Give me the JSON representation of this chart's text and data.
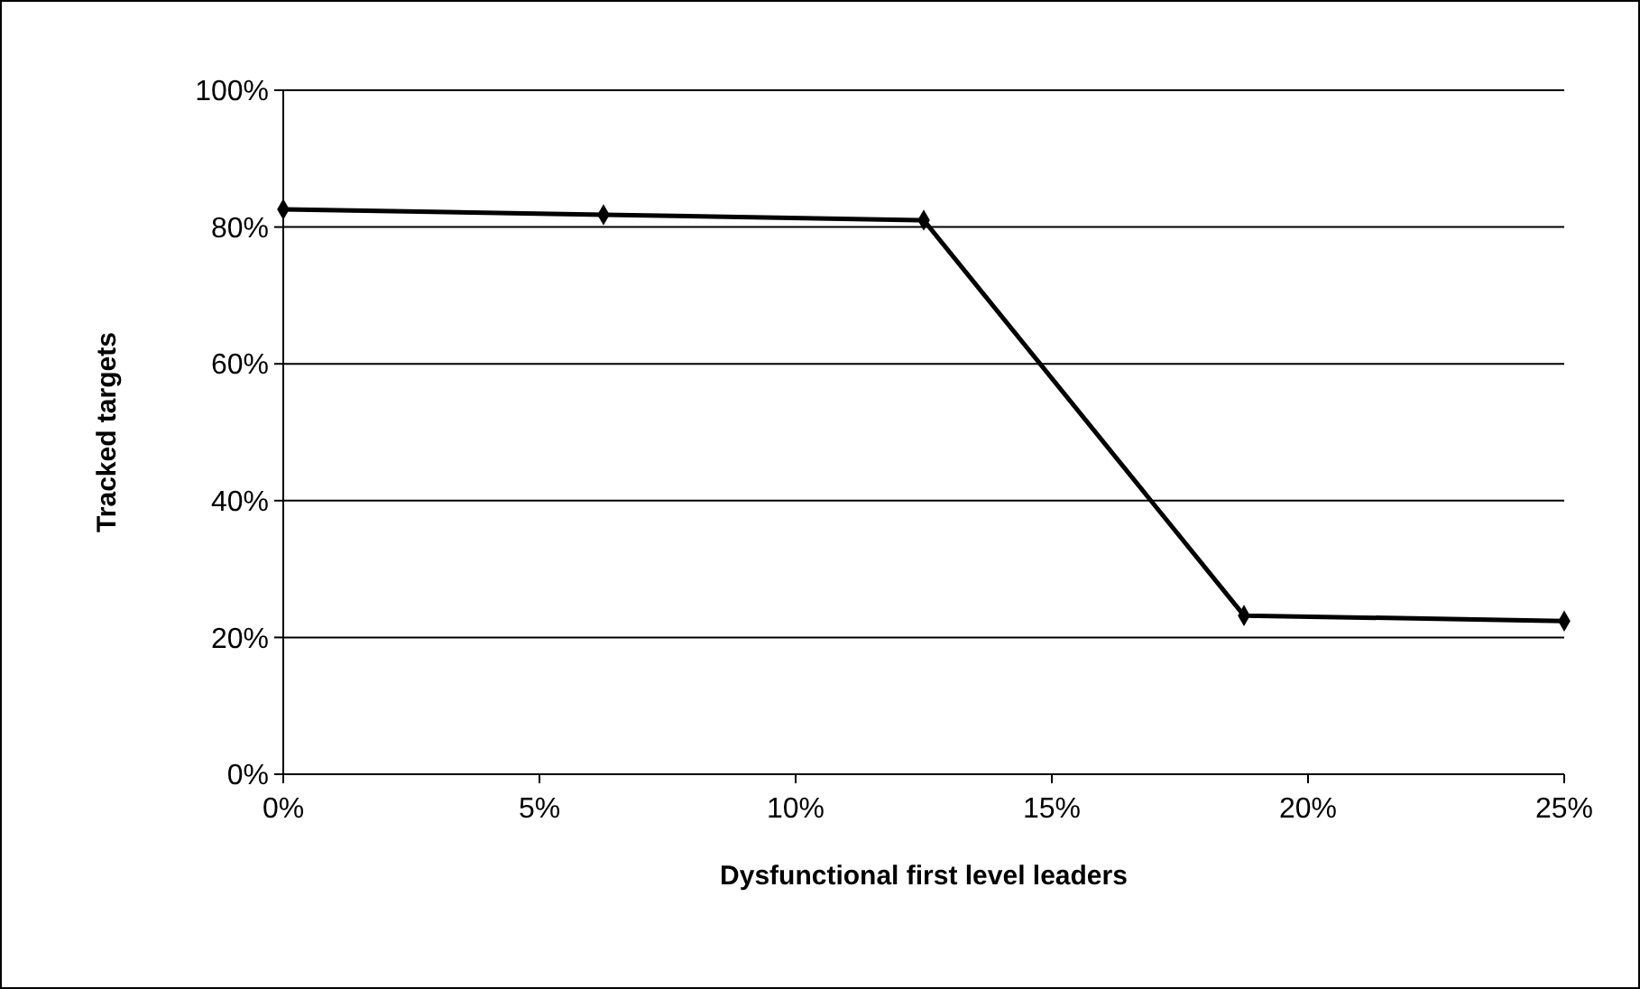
{
  "chart_data": {
    "type": "line",
    "xlabel": "Dysfunctional first level leaders",
    "ylabel": "Tracked targets",
    "x": [
      0,
      6.25,
      12.5,
      18.75,
      25
    ],
    "series": [
      {
        "color": "#000000",
        "values": [
          82.6,
          81.8,
          81.0,
          23.2,
          22.4
        ]
      }
    ],
    "xlim": [
      0,
      25
    ],
    "ylim": [
      0,
      100
    ],
    "xticks": [
      {
        "value": 0,
        "label": "0%"
      },
      {
        "value": 5,
        "label": "5%"
      },
      {
        "value": 10,
        "label": "10%"
      },
      {
        "value": 15,
        "label": "15%"
      },
      {
        "value": 20,
        "label": "20%"
      },
      {
        "value": 25,
        "label": "25%"
      }
    ],
    "yticks": [
      {
        "value": 0,
        "label": "0%"
      },
      {
        "value": 20,
        "label": "20%"
      },
      {
        "value": 40,
        "label": "40%"
      },
      {
        "value": 60,
        "label": "60%"
      },
      {
        "value": 80,
        "label": "80%"
      },
      {
        "value": 100,
        "label": "100%"
      }
    ],
    "grid": "y",
    "marker": "diamond",
    "line_style": "solid"
  }
}
